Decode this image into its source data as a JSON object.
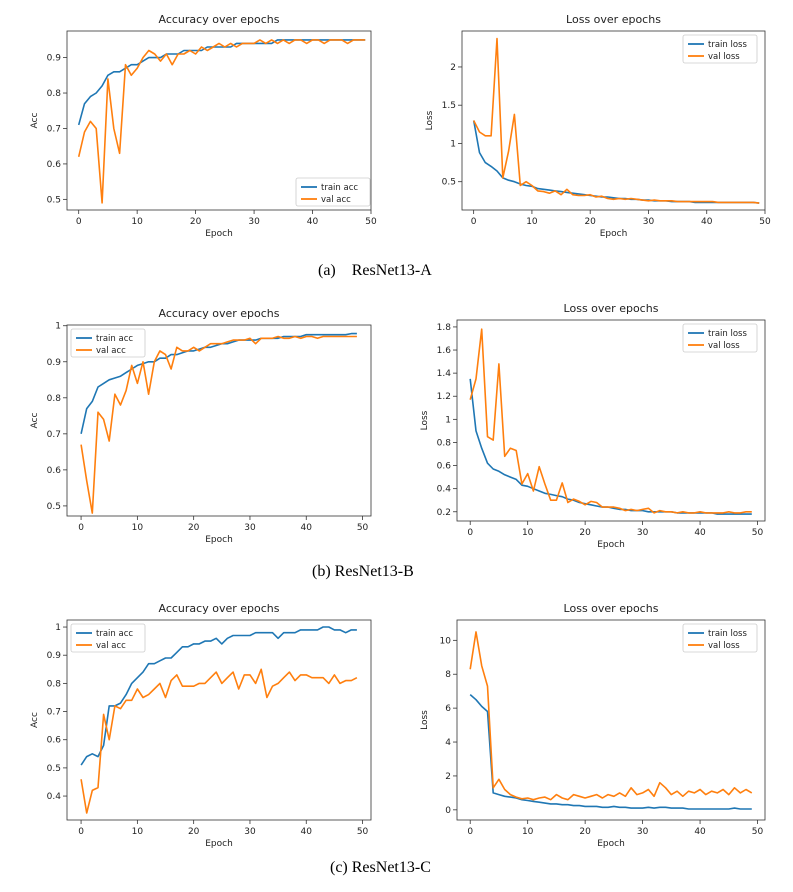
{
  "chart_data": [
    {
      "type": "line",
      "panel": "a-left",
      "title": "Accuracy over epochs",
      "xlabel": "Epoch",
      "ylabel": "Acc",
      "xlim": [
        -2,
        50
      ],
      "ylim": [
        0.47,
        0.975
      ],
      "xticks": [
        0,
        10,
        20,
        30,
        40,
        50
      ],
      "yticks": [
        0.5,
        0.6,
        0.7,
        0.8,
        0.9
      ],
      "legend_loc": "lower-right",
      "series": [
        {
          "name": "train acc",
          "color": "#1f77b4",
          "values": [
            0.71,
            0.77,
            0.79,
            0.8,
            0.82,
            0.85,
            0.86,
            0.86,
            0.87,
            0.88,
            0.88,
            0.89,
            0.9,
            0.9,
            0.9,
            0.91,
            0.91,
            0.91,
            0.92,
            0.92,
            0.92,
            0.92,
            0.93,
            0.93,
            0.93,
            0.93,
            0.93,
            0.94,
            0.94,
            0.94,
            0.94,
            0.94,
            0.94,
            0.94,
            0.95,
            0.95,
            0.95,
            0.95,
            0.95,
            0.95,
            0.95,
            0.95,
            0.95,
            0.95,
            0.95,
            0.95,
            0.95,
            0.95,
            0.95,
            0.95
          ]
        },
        {
          "name": "val acc",
          "color": "#ff7f0e",
          "values": [
            0.62,
            0.69,
            0.72,
            0.7,
            0.49,
            0.84,
            0.7,
            0.63,
            0.88,
            0.85,
            0.87,
            0.9,
            0.92,
            0.91,
            0.89,
            0.91,
            0.88,
            0.91,
            0.91,
            0.92,
            0.91,
            0.93,
            0.92,
            0.93,
            0.94,
            0.93,
            0.94,
            0.93,
            0.94,
            0.94,
            0.94,
            0.95,
            0.94,
            0.95,
            0.94,
            0.95,
            0.94,
            0.95,
            0.95,
            0.94,
            0.95,
            0.95,
            0.94,
            0.95,
            0.95,
            0.95,
            0.94,
            0.95,
            0.95,
            0.95
          ]
        }
      ]
    },
    {
      "type": "line",
      "panel": "a-right",
      "title": "Loss over epochs",
      "xlabel": "Epoch",
      "ylabel": "Loss",
      "xlim": [
        -2,
        50
      ],
      "ylim": [
        0.13,
        2.47
      ],
      "xticks": [
        0,
        10,
        20,
        30,
        40,
        50
      ],
      "yticks": [
        0.5,
        1.0,
        1.5,
        2.0
      ],
      "legend_loc": "upper-right",
      "series": [
        {
          "name": "train loss",
          "color": "#1f77b4",
          "values": [
            1.3,
            0.88,
            0.75,
            0.7,
            0.64,
            0.55,
            0.52,
            0.5,
            0.47,
            0.45,
            0.44,
            0.41,
            0.4,
            0.39,
            0.38,
            0.37,
            0.36,
            0.35,
            0.34,
            0.33,
            0.32,
            0.31,
            0.3,
            0.3,
            0.29,
            0.28,
            0.28,
            0.27,
            0.27,
            0.26,
            0.26,
            0.25,
            0.25,
            0.25,
            0.24,
            0.24,
            0.24,
            0.24,
            0.23,
            0.23,
            0.23,
            0.23,
            0.23,
            0.23,
            0.23,
            0.23,
            0.23,
            0.23,
            0.23,
            0.22
          ]
        },
        {
          "name": "val loss",
          "color": "#ff7f0e",
          "values": [
            1.3,
            1.15,
            1.1,
            1.1,
            2.37,
            0.55,
            0.9,
            1.38,
            0.45,
            0.5,
            0.45,
            0.38,
            0.37,
            0.35,
            0.38,
            0.33,
            0.4,
            0.33,
            0.32,
            0.32,
            0.33,
            0.3,
            0.31,
            0.28,
            0.27,
            0.28,
            0.27,
            0.28,
            0.27,
            0.26,
            0.25,
            0.26,
            0.25,
            0.25,
            0.25,
            0.24,
            0.24,
            0.24,
            0.24,
            0.24,
            0.24,
            0.24,
            0.23,
            0.23,
            0.23,
            0.23,
            0.23,
            0.23,
            0.23,
            0.22
          ]
        }
      ]
    },
    {
      "type": "line",
      "panel": "b-left",
      "title": "Accuracy over epochs",
      "xlabel": "Epoch",
      "ylabel": "Acc",
      "xlim": [
        -2.5,
        51.5
      ],
      "ylim": [
        0.472,
        1.002
      ],
      "xticks": [
        0,
        10,
        20,
        30,
        40,
        50
      ],
      "yticks": [
        0.5,
        0.6,
        0.7,
        0.8,
        0.9,
        1.0
      ],
      "legend_loc": "upper-left",
      "series": [
        {
          "name": "train acc",
          "color": "#1f77b4",
          "values": [
            0.7,
            0.77,
            0.79,
            0.83,
            0.84,
            0.85,
            0.855,
            0.86,
            0.87,
            0.88,
            0.89,
            0.895,
            0.9,
            0.9,
            0.91,
            0.91,
            0.92,
            0.92,
            0.925,
            0.93,
            0.93,
            0.935,
            0.94,
            0.94,
            0.945,
            0.95,
            0.95,
            0.955,
            0.96,
            0.96,
            0.96,
            0.96,
            0.965,
            0.965,
            0.965,
            0.965,
            0.97,
            0.97,
            0.97,
            0.97,
            0.975,
            0.975,
            0.975,
            0.975,
            0.975,
            0.975,
            0.975,
            0.975,
            0.978,
            0.978
          ]
        },
        {
          "name": "val acc",
          "color": "#ff7f0e",
          "values": [
            0.67,
            0.57,
            0.48,
            0.76,
            0.74,
            0.68,
            0.81,
            0.78,
            0.82,
            0.89,
            0.84,
            0.9,
            0.81,
            0.9,
            0.93,
            0.92,
            0.88,
            0.94,
            0.93,
            0.93,
            0.94,
            0.93,
            0.94,
            0.95,
            0.95,
            0.95,
            0.955,
            0.96,
            0.96,
            0.96,
            0.965,
            0.95,
            0.965,
            0.965,
            0.965,
            0.97,
            0.965,
            0.965,
            0.97,
            0.965,
            0.97,
            0.97,
            0.965,
            0.97,
            0.97,
            0.97,
            0.97,
            0.97,
            0.97,
            0.97
          ]
        }
      ]
    },
    {
      "type": "line",
      "panel": "b-right",
      "title": "Loss over epochs",
      "xlabel": "Epoch",
      "ylabel": "Loss",
      "xlim": [
        -2.3,
        51.3
      ],
      "ylim": [
        0.12,
        1.86
      ],
      "xticks": [
        0,
        10,
        20,
        30,
        40,
        50
      ],
      "yticks": [
        0.2,
        0.4,
        0.6,
        0.8,
        1.0,
        1.2,
        1.4,
        1.6,
        1.8
      ],
      "legend_loc": "upper-right",
      "series": [
        {
          "name": "train loss",
          "color": "#1f77b4",
          "values": [
            1.35,
            0.9,
            0.75,
            0.62,
            0.57,
            0.55,
            0.52,
            0.5,
            0.48,
            0.43,
            0.42,
            0.4,
            0.38,
            0.36,
            0.35,
            0.34,
            0.33,
            0.31,
            0.3,
            0.28,
            0.27,
            0.26,
            0.25,
            0.24,
            0.24,
            0.23,
            0.22,
            0.22,
            0.21,
            0.21,
            0.21,
            0.2,
            0.2,
            0.2,
            0.2,
            0.2,
            0.19,
            0.19,
            0.19,
            0.19,
            0.19,
            0.19,
            0.19,
            0.18,
            0.18,
            0.18,
            0.18,
            0.18,
            0.18,
            0.18
          ]
        },
        {
          "name": "val loss",
          "color": "#ff7f0e",
          "values": [
            1.17,
            1.35,
            1.78,
            0.85,
            0.82,
            1.48,
            0.68,
            0.75,
            0.73,
            0.44,
            0.53,
            0.38,
            0.59,
            0.44,
            0.3,
            0.3,
            0.45,
            0.28,
            0.31,
            0.29,
            0.26,
            0.29,
            0.28,
            0.24,
            0.24,
            0.24,
            0.23,
            0.21,
            0.22,
            0.21,
            0.22,
            0.23,
            0.19,
            0.21,
            0.2,
            0.2,
            0.19,
            0.2,
            0.19,
            0.19,
            0.2,
            0.19,
            0.19,
            0.19,
            0.19,
            0.2,
            0.19,
            0.19,
            0.2,
            0.2
          ]
        }
      ]
    },
    {
      "type": "line",
      "panel": "c-left",
      "title": "Accuracy over epochs",
      "xlabel": "Epoch",
      "ylabel": "Acc",
      "xlim": [
        -2.5,
        51.5
      ],
      "ylim": [
        0.315,
        1.025
      ],
      "xticks": [
        0,
        10,
        20,
        30,
        40,
        50
      ],
      "yticks": [
        0.4,
        0.5,
        0.6,
        0.7,
        0.8,
        0.9,
        1.0
      ],
      "legend_loc": "upper-left",
      "series": [
        {
          "name": "train acc",
          "color": "#1f77b4",
          "values": [
            0.51,
            0.54,
            0.55,
            0.54,
            0.58,
            0.72,
            0.72,
            0.73,
            0.76,
            0.8,
            0.82,
            0.84,
            0.87,
            0.87,
            0.88,
            0.89,
            0.89,
            0.91,
            0.93,
            0.93,
            0.94,
            0.94,
            0.95,
            0.95,
            0.96,
            0.94,
            0.96,
            0.97,
            0.97,
            0.97,
            0.97,
            0.98,
            0.98,
            0.98,
            0.98,
            0.96,
            0.98,
            0.98,
            0.98,
            0.99,
            0.99,
            0.99,
            0.99,
            1.0,
            1.0,
            0.99,
            0.99,
            0.98,
            0.99,
            0.99
          ]
        },
        {
          "name": "val acc",
          "color": "#ff7f0e",
          "values": [
            0.46,
            0.34,
            0.42,
            0.43,
            0.69,
            0.6,
            0.72,
            0.71,
            0.74,
            0.74,
            0.78,
            0.75,
            0.76,
            0.78,
            0.8,
            0.75,
            0.81,
            0.83,
            0.79,
            0.79,
            0.79,
            0.8,
            0.8,
            0.82,
            0.84,
            0.8,
            0.82,
            0.84,
            0.78,
            0.83,
            0.83,
            0.8,
            0.85,
            0.75,
            0.79,
            0.8,
            0.82,
            0.84,
            0.81,
            0.83,
            0.83,
            0.82,
            0.82,
            0.82,
            0.8,
            0.83,
            0.8,
            0.81,
            0.81,
            0.82
          ]
        }
      ]
    },
    {
      "type": "line",
      "panel": "c-right",
      "title": "Loss over epochs",
      "xlabel": "Epoch",
      "ylabel": "Loss",
      "xlim": [
        -2.3,
        51.3
      ],
      "ylim": [
        -0.6,
        11.2
      ],
      "xticks": [
        0,
        10,
        20,
        30,
        40,
        50
      ],
      "yticks": [
        0,
        2,
        4,
        6,
        8,
        10
      ],
      "legend_loc": "upper-right",
      "series": [
        {
          "name": "train loss",
          "color": "#1f77b4",
          "values": [
            6.8,
            6.5,
            6.1,
            5.8,
            1.0,
            0.9,
            0.8,
            0.75,
            0.7,
            0.6,
            0.55,
            0.5,
            0.45,
            0.4,
            0.35,
            0.35,
            0.3,
            0.3,
            0.25,
            0.25,
            0.2,
            0.2,
            0.2,
            0.15,
            0.15,
            0.2,
            0.15,
            0.15,
            0.1,
            0.1,
            0.1,
            0.15,
            0.1,
            0.15,
            0.15,
            0.1,
            0.1,
            0.1,
            0.05,
            0.05,
            0.05,
            0.05,
            0.05,
            0.05,
            0.05,
            0.05,
            0.1,
            0.05,
            0.05,
            0.05
          ]
        },
        {
          "name": "val loss",
          "color": "#ff7f0e",
          "values": [
            8.3,
            10.5,
            8.5,
            7.3,
            1.3,
            1.8,
            1.2,
            0.9,
            0.75,
            0.65,
            0.7,
            0.6,
            0.7,
            0.75,
            0.6,
            0.9,
            0.7,
            0.6,
            0.9,
            0.8,
            0.7,
            0.8,
            0.9,
            0.7,
            0.9,
            0.8,
            1.0,
            0.8,
            1.3,
            0.9,
            1.0,
            1.2,
            0.8,
            1.6,
            1.3,
            0.9,
            1.1,
            0.8,
            1.1,
            1.0,
            1.2,
            0.9,
            1.1,
            1.0,
            1.2,
            0.9,
            1.3,
            1.0,
            1.2,
            1.0
          ]
        }
      ]
    }
  ],
  "captions": [
    "(a)    ResNet13-A",
    "(b) ResNet13-B",
    "(c) ResNet13-C"
  ]
}
